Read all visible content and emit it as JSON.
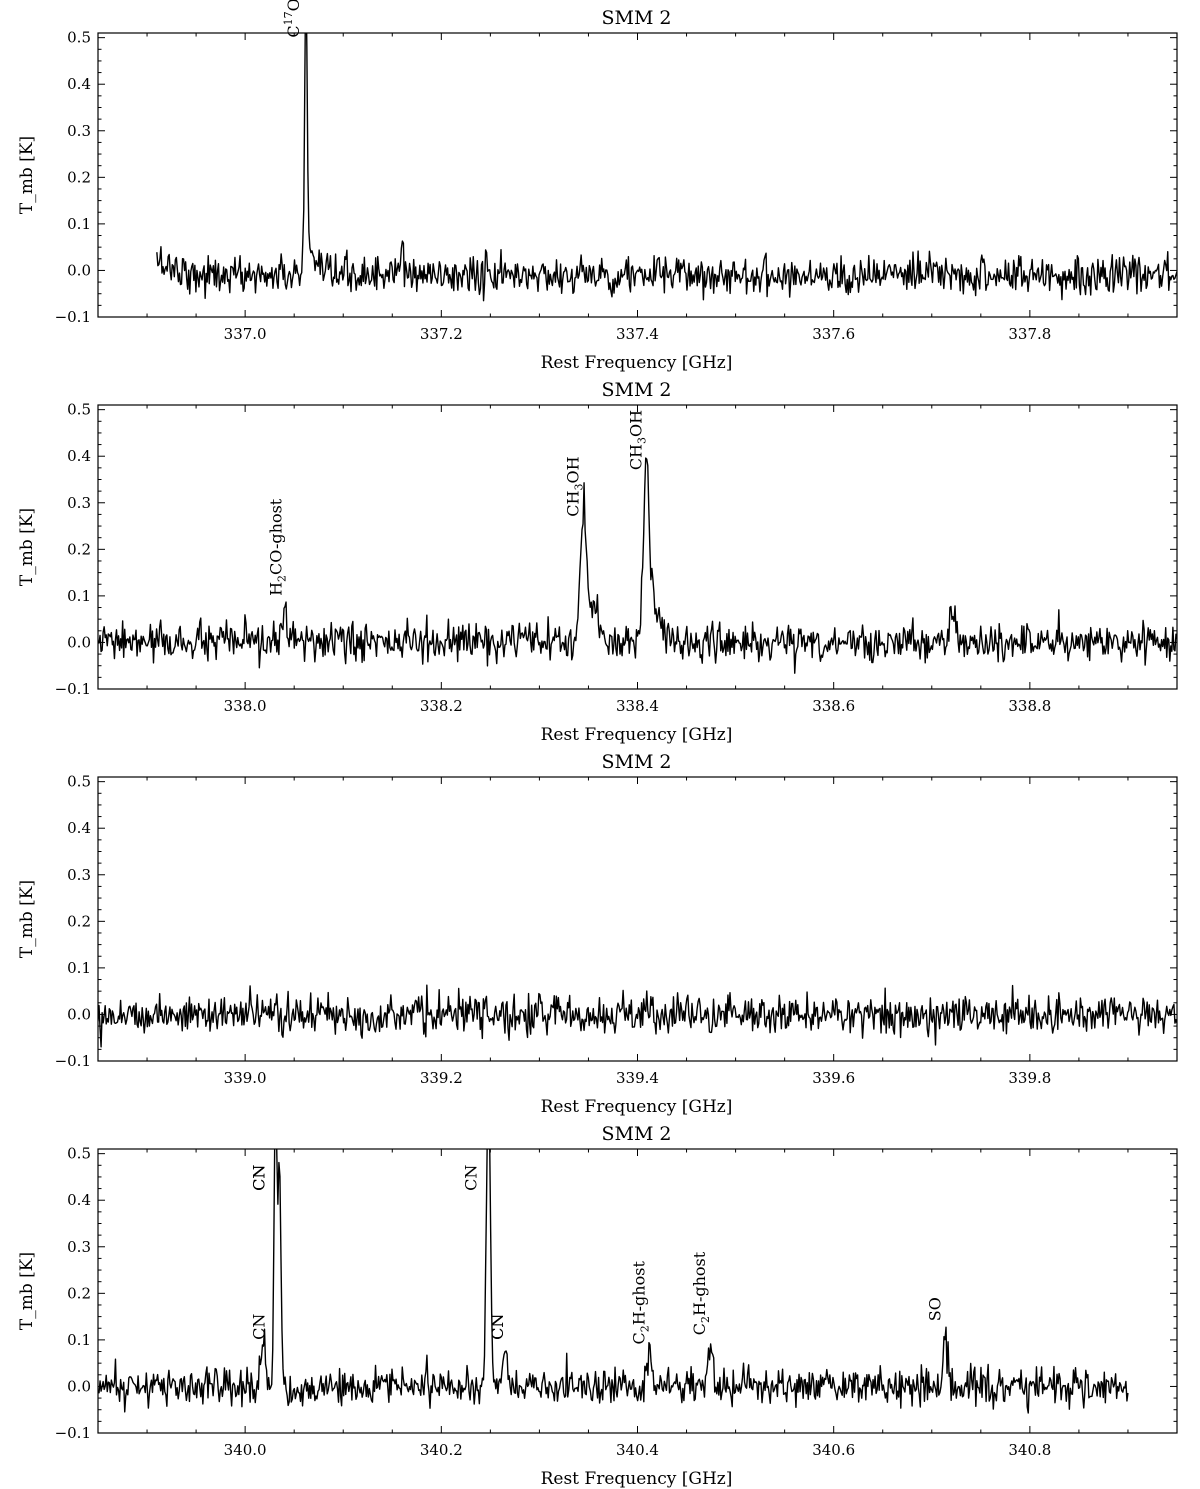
{
  "chart_data": [
    {
      "type": "line",
      "title": "SMM 2",
      "xlabel": "Rest Frequency [GHz]",
      "ylabel": "T_mb [K]",
      "xlim": [
        336.85,
        337.95
      ],
      "ylim": [
        -0.1,
        0.51
      ],
      "xticks": [
        337.0,
        337.2,
        337.4,
        337.6,
        337.8
      ],
      "xtick_labels": [
        "337.0",
        "337.2",
        "337.4",
        "337.6",
        "337.8"
      ],
      "yticks": [
        -0.1,
        0.0,
        0.1,
        0.2,
        0.3,
        0.4,
        0.5
      ],
      "ytick_labels": [
        "−0.1",
        "0.0",
        "0.1",
        "0.2",
        "0.3",
        "0.4",
        "0.5"
      ],
      "series": [
        {
          "x_start": 336.91,
          "x_end": 337.95,
          "noise_rms": 0.02,
          "baseline": [
            [
              336.91,
              0.02
            ],
            [
              336.95,
              -0.01
            ],
            [
              337.95,
              -0.01
            ]
          ],
          "peaks": [
            {
              "x": 337.062,
              "y": 0.62,
              "width": 0.0012
            },
            {
              "x": 337.065,
              "y": 0.05,
              "width": 0.004
            },
            {
              "x": 337.16,
              "y": 0.05,
              "width": 0.002
            }
          ]
        }
      ],
      "annotations": [
        {
          "text": "C",
          "sup": "17",
          "after": "O",
          "x": 337.055,
          "y": 0.5
        }
      ]
    },
    {
      "type": "line",
      "title": "SMM 2",
      "xlabel": "Rest Frequency [GHz]",
      "ylabel": "T_mb [K]",
      "xlim": [
        337.85,
        338.95
      ],
      "ylim": [
        -0.1,
        0.51
      ],
      "xticks": [
        338.0,
        338.2,
        338.4,
        338.6,
        338.8
      ],
      "xtick_labels": [
        "338.0",
        "338.2",
        "338.4",
        "338.6",
        "338.8"
      ],
      "yticks": [
        -0.1,
        0.0,
        0.1,
        0.2,
        0.3,
        0.4,
        0.5
      ],
      "ytick_labels": [
        "−0.1",
        "0.0",
        "0.1",
        "0.2",
        "0.3",
        "0.4",
        "0.5"
      ],
      "series": [
        {
          "x_start": 337.85,
          "x_end": 338.95,
          "noise_rms": 0.02,
          "baseline": [
            [
              337.85,
              0.0
            ],
            [
              338.95,
              0.0
            ]
          ],
          "peaks": [
            {
              "x": 338.042,
              "y": 0.08,
              "width": 0.0025
            },
            {
              "x": 338.345,
              "y": 0.25,
              "width": 0.003
            },
            {
              "x": 338.355,
              "y": 0.08,
              "width": 0.006
            },
            {
              "x": 338.409,
              "y": 0.35,
              "width": 0.003
            },
            {
              "x": 338.416,
              "y": 0.09,
              "width": 0.006
            },
            {
              "x": 338.722,
              "y": 0.06,
              "width": 0.003
            }
          ]
        }
      ],
      "annotations": [
        {
          "text": "H",
          "sub": "2",
          "after": "CO-ghost",
          "x": 338.037,
          "y": 0.1
        },
        {
          "text": "CH",
          "sub": "3",
          "after": "OH",
          "x": 338.34,
          "y": 0.27
        },
        {
          "text": "CH",
          "sub": "3",
          "after": "OH",
          "x": 338.404,
          "y": 0.37
        }
      ]
    },
    {
      "type": "line",
      "title": "SMM 2",
      "xlabel": "Rest Frequency [GHz]",
      "ylabel": "T_mb [K]",
      "xlim": [
        338.85,
        339.95
      ],
      "ylim": [
        -0.1,
        0.51
      ],
      "xticks": [
        339.0,
        339.2,
        339.4,
        339.6,
        339.8
      ],
      "xtick_labels": [
        "339.0",
        "339.2",
        "339.4",
        "339.6",
        "339.8"
      ],
      "yticks": [
        -0.1,
        0.0,
        0.1,
        0.2,
        0.3,
        0.4,
        0.5
      ],
      "ytick_labels": [
        "−0.1",
        "0.0",
        "0.1",
        "0.2",
        "0.3",
        "0.4",
        "0.5"
      ],
      "series": [
        {
          "x_start": 338.85,
          "x_end": 339.95,
          "noise_rms": 0.02,
          "baseline": [
            [
              338.85,
              0.0
            ],
            [
              339.95,
              0.0
            ]
          ],
          "peaks": []
        }
      ],
      "annotations": []
    },
    {
      "type": "line",
      "title": "SMM 2",
      "xlabel": "Rest Frequency [GHz]",
      "ylabel": "T_mb [K]",
      "xlim": [
        339.85,
        340.95
      ],
      "ylim": [
        -0.1,
        0.51
      ],
      "xticks": [
        340.0,
        340.2,
        340.4,
        340.6,
        340.8
      ],
      "xtick_labels": [
        "340.0",
        "340.2",
        "340.4",
        "340.6",
        "340.8"
      ],
      "yticks": [
        -0.1,
        0.0,
        0.1,
        0.2,
        0.3,
        0.4,
        0.5
      ],
      "ytick_labels": [
        "−0.1",
        "0.0",
        "0.1",
        "0.2",
        "0.3",
        "0.4",
        "0.5"
      ],
      "series": [
        {
          "x_start": 339.85,
          "x_end": 340.9,
          "noise_rms": 0.02,
          "baseline": [
            [
              339.85,
              0.0
            ],
            [
              340.9,
              0.0
            ]
          ],
          "peaks": [
            {
              "x": 340.019,
              "y": 0.08,
              "width": 0.002
            },
            {
              "x": 340.031,
              "y": 0.62,
              "width": 0.0015
            },
            {
              "x": 340.035,
              "y": 0.47,
              "width": 0.0015
            },
            {
              "x": 340.248,
              "y": 0.62,
              "width": 0.002
            },
            {
              "x": 340.265,
              "y": 0.07,
              "width": 0.002
            },
            {
              "x": 340.412,
              "y": 0.06,
              "width": 0.003
            },
            {
              "x": 340.474,
              "y": 0.08,
              "width": 0.003
            },
            {
              "x": 340.714,
              "y": 0.11,
              "width": 0.0025
            }
          ]
        }
      ],
      "annotations": [
        {
          "text": "CN",
          "x": 340.02,
          "y": 0.42
        },
        {
          "text": "CN",
          "x": 340.02,
          "y": 0.42
        },
        {
          "text": "CN",
          "x": 340.02,
          "y": 0.1
        },
        {
          "text": "CN",
          "x": 340.236,
          "y": 0.42
        },
        {
          "text": "CN",
          "x": 340.263,
          "y": 0.1
        },
        {
          "text": "CN",
          "x": 340.263,
          "y": 0.1
        },
        {
          "text": "C",
          "sub": "2",
          "after": "H-ghost",
          "x": 340.407,
          "y": 0.09
        },
        {
          "text": "C",
          "sub": "2",
          "after": "H-ghost",
          "x": 340.469,
          "y": 0.11
        },
        {
          "text": "SO",
          "x": 340.709,
          "y": 0.14
        }
      ]
    }
  ]
}
